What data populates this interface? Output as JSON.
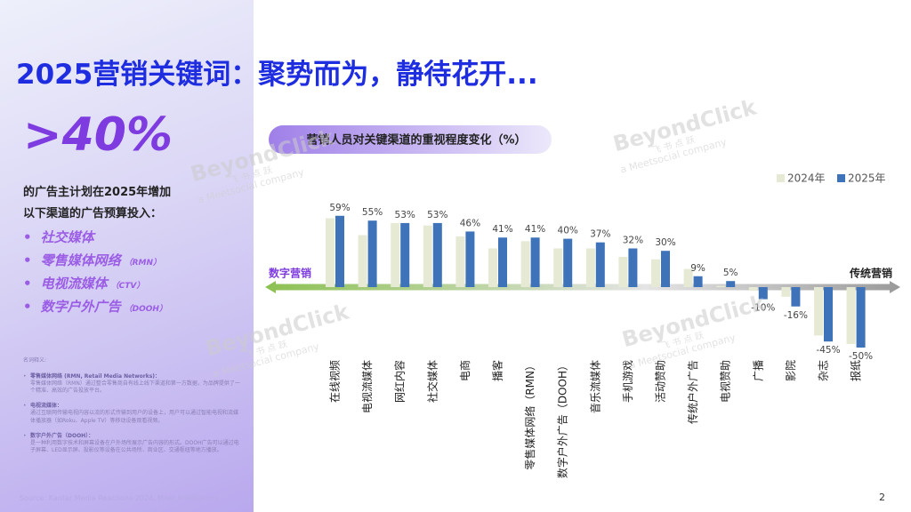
{
  "title": "2025营销关键词：聚势而为，静待花开...",
  "highlight": ">40%",
  "intro": [
    "的广告主计划在2025年增加",
    "以下渠道的广告预算投入："
  ],
  "channels": [
    {
      "name": "社交媒体"
    },
    {
      "name": "零售媒体网络",
      "abbr": "（RMN）"
    },
    {
      "name": "电视流媒体",
      "abbr": "（CTV）"
    },
    {
      "name": "数字户外广告",
      "abbr": "（DOOH）"
    }
  ],
  "glossary": {
    "heading": "名词释义:",
    "items": [
      {
        "term": "零售媒体网络 (RMN, Retail Media Networks)：",
        "text": "零售媒体网络（RMN）通过整合零售商自有线上线下渠道和第一方数据，为品牌提供了一个精准、高效的广告投放平台。"
      },
      {
        "term": "电视流媒体：",
        "text": "通过互联网传输电视内容以流的形式传输到用户的设备上，用户可以通过智能电视和流媒体播放器（如Roku、Apple TV）等移动设备观看视频。"
      },
      {
        "term": "数字户外广告（DOOH）：",
        "text": "是一种利用数字技术和屏幕设备在户外场所展示广告内容的形式。DOOH广告可以通过电子屏幕、LED显示屏、投影仪等设备在公共场所、商业区、交通枢纽等地方播放。"
      }
    ]
  },
  "source": "Source: Kantar Media Reactions 2024, Meet Intelligence",
  "page_number": "2",
  "watermark": {
    "brand": "BeyondClick",
    "tagline": "飞 书 点 跃",
    "company": "a Meetsocial company"
  },
  "chart_data": {
    "type": "bar",
    "title": "营销人员对关键渠道的重视程度变化（%）",
    "categories": [
      "在线视频",
      "电视流媒体",
      "网红内容",
      "社交媒体",
      "电商",
      "播客",
      "零售媒体网络（RMN）",
      "数字户外广告（DOOH）",
      "音乐流媒体",
      "手机游戏",
      "活动赞助",
      "传统户外广告",
      "电视赞助",
      "广播",
      "影院",
      "杂志",
      "报纸"
    ],
    "series": [
      {
        "name": "2024年",
        "color": "#e6ead4",
        "values": [
          57,
          43,
          53,
          51,
          42,
          32,
          38,
          32,
          32,
          25,
          23,
          15,
          1,
          -3,
          -8,
          -40,
          -47
        ]
      },
      {
        "name": "2025年",
        "color": "#3e73b9",
        "values": [
          59,
          55,
          53,
          53,
          46,
          41,
          41,
          40,
          37,
          32,
          30,
          9,
          5,
          -10,
          -16,
          -45,
          -50
        ],
        "value_labels": [
          "59%",
          "55%",
          "53%",
          "53%",
          "46%",
          "41%",
          "41%",
          "40%",
          "37%",
          "32%",
          "30%",
          "9%",
          "5%",
          "-10%",
          "-16%",
          "-45%",
          "-50%"
        ]
      }
    ],
    "arrow_left": "数字营销",
    "arrow_right": "传统营销",
    "legend": "top-right"
  }
}
